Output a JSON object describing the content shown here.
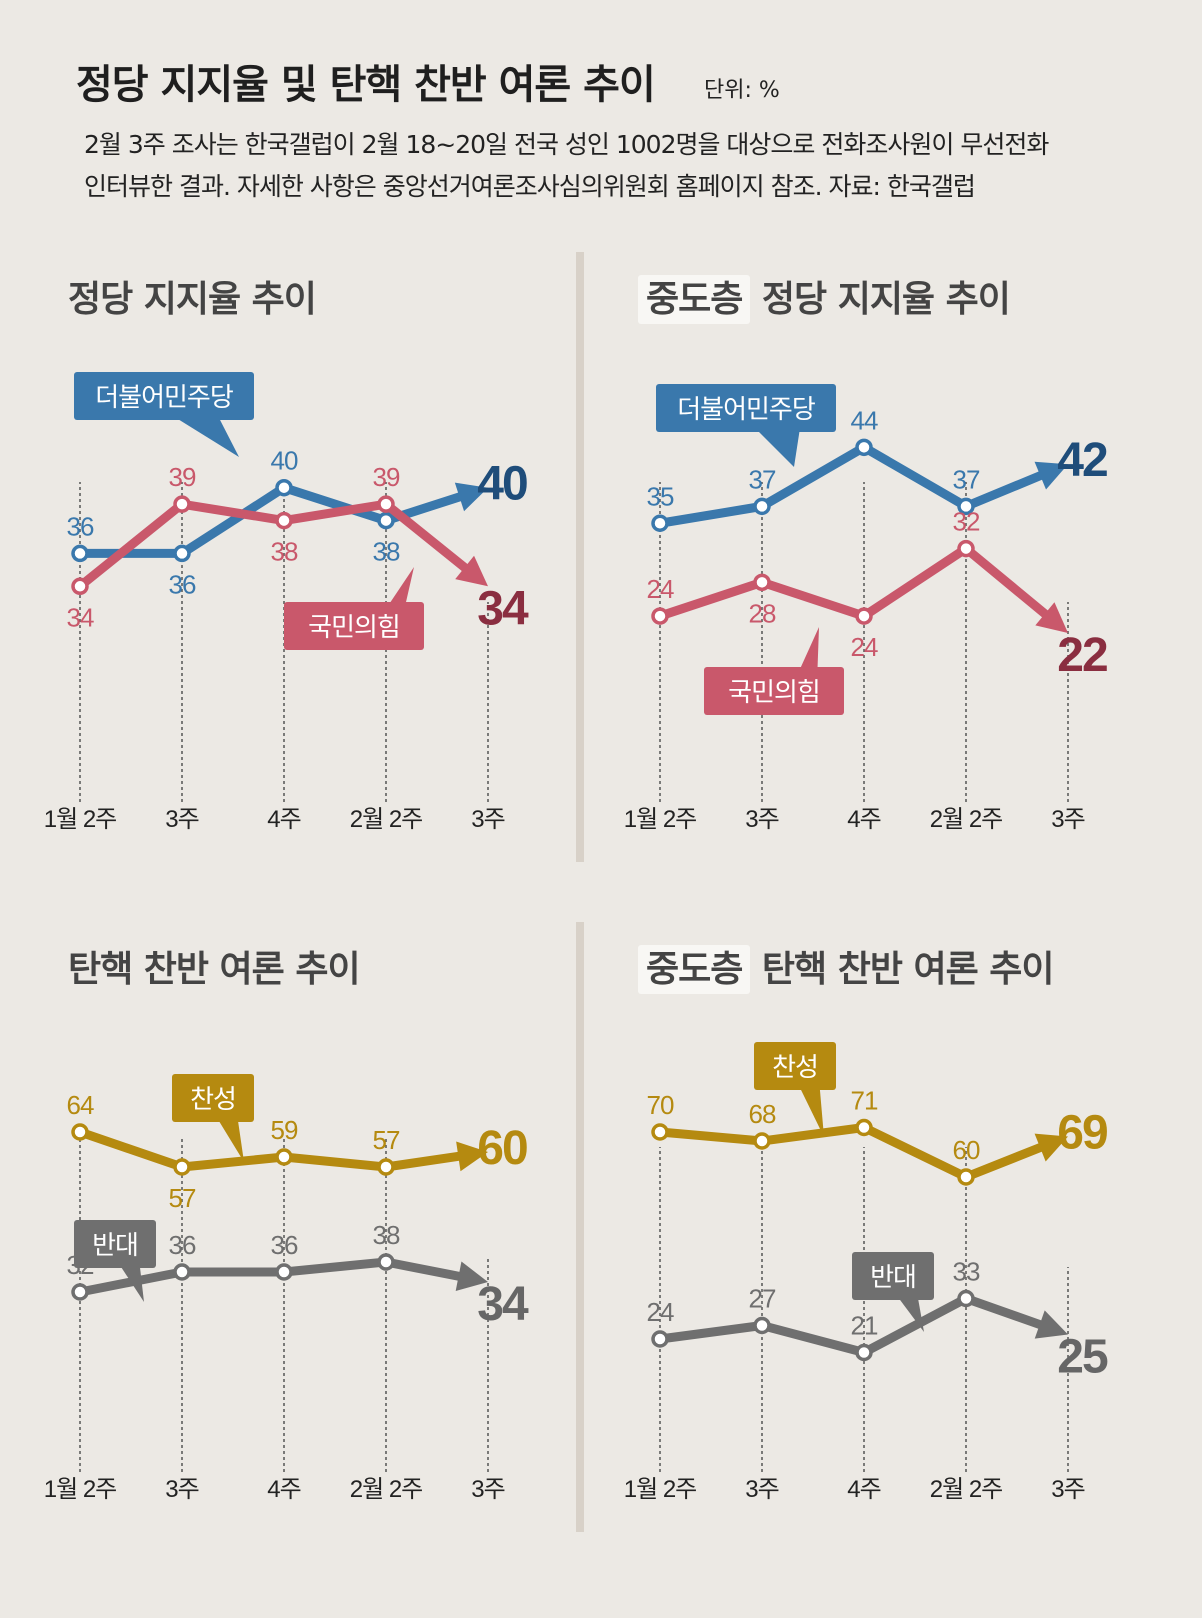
{
  "header": {
    "title": "정당 지지율 및 탄핵 찬반 여론 추이",
    "unit": "단위: %",
    "description_line1": "2월 3주 조사는 한국갤럽이 2월 18~20일 전국 성인 1002명을 대상으로 전화조사원이 무선전화",
    "description_line2": "인터뷰한 결과. 자세한 사항은 중앙선거여론조사심의위원회 홈페이지 참조. 자료: 한국갤럽"
  },
  "colors": {
    "blue": "#3a78ac",
    "red": "#c9586b",
    "gold": "#b58a10",
    "gray": "#6f6f6f",
    "blue_dark": "#1f4d7a",
    "red_dark": "#8a2e40",
    "gold_dark": "#b58a10",
    "gray_dark": "#666666"
  },
  "chart_data": [
    {
      "id": "party",
      "type": "line",
      "title": "정당 지지율 추이",
      "title_prefix": "",
      "categories": [
        "1월 2주",
        "3주",
        "4주",
        "2월 2주",
        "3주"
      ],
      "ylim": [
        30,
        44
      ],
      "series": [
        {
          "name": "더불어민주당",
          "color": "blue",
          "values": [
            36,
            36,
            40,
            38,
            40
          ]
        },
        {
          "name": "국민의힘",
          "color": "red",
          "values": [
            34,
            39,
            38,
            39,
            34
          ]
        }
      ]
    },
    {
      "id": "party_mid",
      "type": "line",
      "title": "정당 지지율 추이",
      "title_prefix": "중도층",
      "categories": [
        "1월 2주",
        "3주",
        "4주",
        "2월 2주",
        "3주"
      ],
      "ylim": [
        15,
        47
      ],
      "series": [
        {
          "name": "더불어민주당",
          "color": "blue",
          "values": [
            35,
            37,
            44,
            37,
            42
          ]
        },
        {
          "name": "국민의힘",
          "color": "red",
          "values": [
            24,
            28,
            24,
            32,
            22
          ]
        }
      ]
    },
    {
      "id": "impeach",
      "type": "line",
      "title": "탄핵 찬반 여론 추이",
      "title_prefix": "",
      "categories": [
        "1월 2주",
        "3주",
        "4주",
        "2월 2주",
        "3주"
      ],
      "ylim": [
        20,
        75
      ],
      "series": [
        {
          "name": "찬성",
          "color": "gold",
          "values": [
            64,
            57,
            59,
            57,
            60
          ]
        },
        {
          "name": "반대",
          "color": "gray",
          "values": [
            32,
            36,
            36,
            38,
            34
          ]
        }
      ]
    },
    {
      "id": "impeach_mid",
      "type": "line",
      "title": "탄핵 찬반 여론 추이",
      "title_prefix": "중도층",
      "categories": [
        "1월 2주",
        "3주",
        "4주",
        "2월 2주",
        "3주"
      ],
      "ylim": [
        10,
        80
      ],
      "series": [
        {
          "name": "찬성",
          "color": "gold",
          "values": [
            70,
            68,
            71,
            60,
            69
          ]
        },
        {
          "name": "반대",
          "color": "gray",
          "values": [
            24,
            27,
            21,
            33,
            25
          ]
        }
      ]
    }
  ]
}
